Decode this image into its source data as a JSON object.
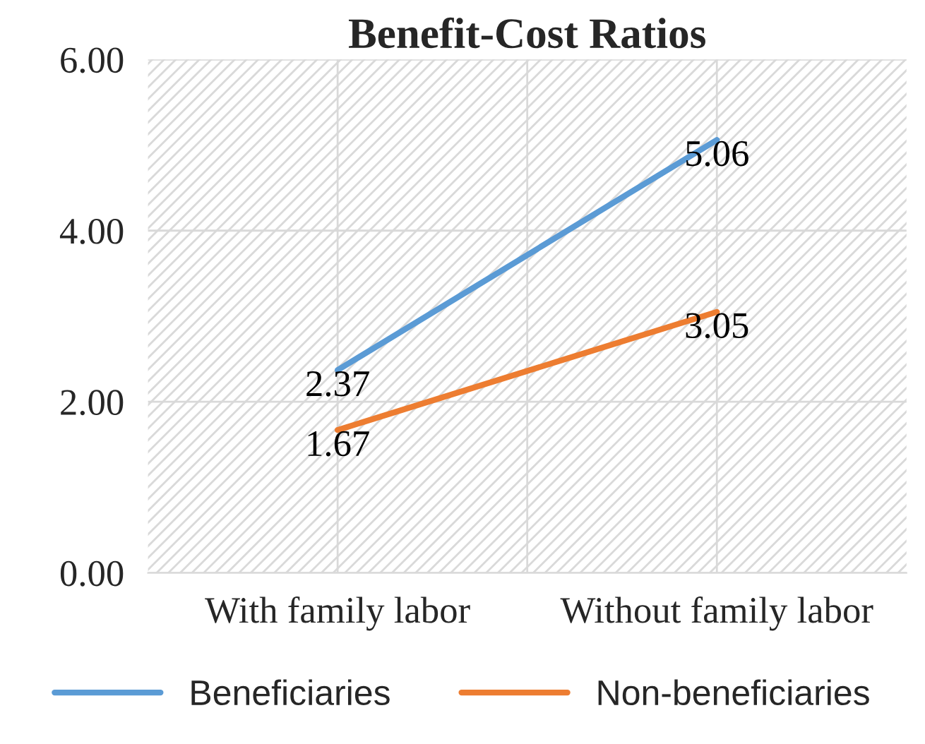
{
  "chart_data": {
    "type": "line",
    "title": "Benefit-Cost Ratios",
    "categories": [
      "With family labor",
      "Without family labor"
    ],
    "series": [
      {
        "name": "Beneficiaries",
        "color": "#5b9bd5",
        "values": [
          2.37,
          5.06
        ]
      },
      {
        "name": "Non-beneficiaries",
        "color": "#ed7d31",
        "values": [
          1.67,
          3.05
        ]
      }
    ],
    "ylim": [
      0,
      6
    ],
    "yticks": [
      {
        "value": 0,
        "label": "0.00"
      },
      {
        "value": 2,
        "label": "2.00"
      },
      {
        "value": 4,
        "label": "4.00"
      },
      {
        "value": 6,
        "label": "6.00"
      }
    ],
    "grid": true,
    "legend": "bottom",
    "data_labels": true,
    "marker": "none",
    "line_style": "solid"
  }
}
